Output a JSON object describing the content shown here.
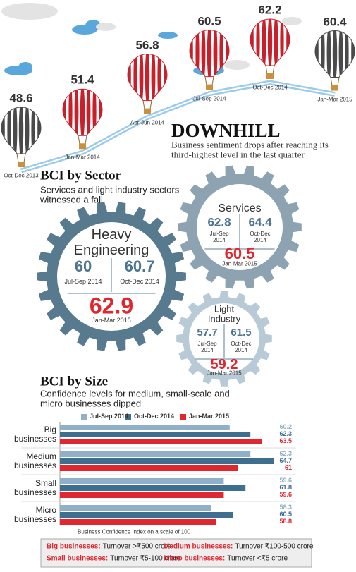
{
  "chart_data": [
    {
      "type": "line",
      "title": "DOWNHILL",
      "subtitle": "Business sentiment drops after reaching its third-highest level in the last quarter",
      "categories": [
        "Oct-Dec 2013",
        "Jan-Mar 2014",
        "Apr-Jun 2014",
        "Jul-Sep 2014",
        "Oct-Dec 2014",
        "Jan-Mar 2015"
      ],
      "values": [
        48.6,
        51.4,
        56.8,
        60.5,
        62.2,
        60.4
      ],
      "colors": [
        "#4a4a4a",
        "#c8202a",
        "#c8202a",
        "#c8202a",
        "#c8202a",
        "#4a4a4a"
      ]
    },
    {
      "type": "bar",
      "title": "BCI by Size",
      "subtitle": "Confidence levels for medium, small-scale and micro businesses dipped",
      "categories": [
        "Big businesses",
        "Medium businesses",
        "Small businesses",
        "Micro businesses"
      ],
      "series": [
        {
          "name": "Jul-Sep 2014",
          "color": "#8fb0c8",
          "values": [
            60.2,
            62.3,
            59.6,
            58.3
          ]
        },
        {
          "name": "Oct-Dec 2014",
          "color": "#3e6f8e",
          "values": [
            62.3,
            64.7,
            61.8,
            60.5
          ]
        },
        {
          "name": "Jan-Mar 2015",
          "color": "#e0262f",
          "values": [
            63.5,
            61,
            59.6,
            58.8
          ]
        }
      ],
      "xlim": [
        43,
        65
      ],
      "note": "Business Confidence Index on a scale of 100",
      "key": [
        {
          "label": "Big businesses:",
          "text": "Turnover >₹500 crore"
        },
        {
          "label": "Medium businesses:",
          "text": "Turnover ₹100-500 crore"
        },
        {
          "label": "Small businesses:",
          "text": "Turnover ₹5-100 crore"
        },
        {
          "label": "Micro businesses:",
          "text": "Turnover <₹5 crore"
        }
      ]
    }
  ],
  "sectors": {
    "title": "BCI by Sector",
    "subtitle": "Services and light industry sectors witnessed a fall",
    "items": [
      {
        "name": "Heavy Engineering",
        "color": "#587a8f",
        "periods": [
          "Jul-Sep 2014",
          "Oct-Dec 2014",
          "Jan-Mar 2015"
        ],
        "values": [
          60,
          60.7,
          62.9
        ]
      },
      {
        "name": "Services",
        "color": "#8ea3b1",
        "periods": [
          "Jul-Sep 2014",
          "Oct-Dec 2014",
          "Jan-Mar 2015"
        ],
        "values": [
          62.8,
          64.4,
          60.5
        ]
      },
      {
        "name": "Light Industry",
        "color": "#b8cad6",
        "periods": [
          "Jul-Sep 2014",
          "Oct-Dec 2014",
          "Jan-Mar 2015"
        ],
        "values": [
          57.7,
          61.5,
          59.2
        ]
      }
    ]
  }
}
